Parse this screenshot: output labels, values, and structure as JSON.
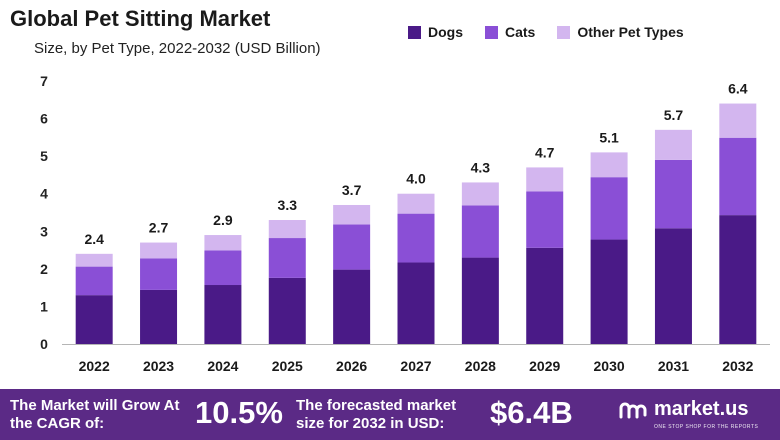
{
  "header": {
    "title": "Global Pet Sitting Market",
    "subtitle": "Size, by Pet Type, 2022-2032 (USD Billion)"
  },
  "legend": [
    {
      "label": "Dogs",
      "color": "#4a1a87"
    },
    {
      "label": "Cats",
      "color": "#8a4fd6"
    },
    {
      "label": "Other Pet Types",
      "color": "#d3b6ef"
    }
  ],
  "chart_data": {
    "type": "bar",
    "stacked": true,
    "categories": [
      "2022",
      "2023",
      "2024",
      "2025",
      "2026",
      "2027",
      "2028",
      "2029",
      "2030",
      "2031",
      "2032"
    ],
    "series": [
      {
        "name": "Dogs",
        "color": "#4a1a87",
        "values": [
          1.3,
          1.44,
          1.57,
          1.76,
          1.98,
          2.17,
          2.3,
          2.56,
          2.78,
          3.08,
          3.43
        ]
      },
      {
        "name": "Cats",
        "color": "#8a4fd6",
        "values": [
          0.76,
          0.84,
          0.92,
          1.06,
          1.2,
          1.3,
          1.39,
          1.5,
          1.66,
          1.82,
          2.06
        ]
      },
      {
        "name": "Other Pet Types",
        "color": "#d3b6ef",
        "values": [
          0.34,
          0.42,
          0.41,
          0.48,
          0.52,
          0.53,
          0.61,
          0.64,
          0.66,
          0.8,
          0.91
        ]
      }
    ],
    "totals": [
      "2.4",
      "2.7",
      "2.9",
      "3.3",
      "3.7",
      "4.0",
      "4.3",
      "4.7",
      "5.1",
      "5.7",
      "6.4"
    ],
    "yticks": [
      0,
      1,
      2,
      3,
      4,
      5,
      6,
      7
    ],
    "ylim": [
      0,
      7
    ],
    "grid": false,
    "legend_position": "top-right"
  },
  "footer": {
    "growth_text": "The Market will Grow At the CAGR of:",
    "cagr": "10.5%",
    "forecast_text": "The forecasted market size for 2032 in USD:",
    "forecast_value": "$6.4B",
    "brand": "market.us",
    "brand_tagline": "ONE STOP SHOP FOR THE REPORTS",
    "background": "#5b2a86"
  }
}
